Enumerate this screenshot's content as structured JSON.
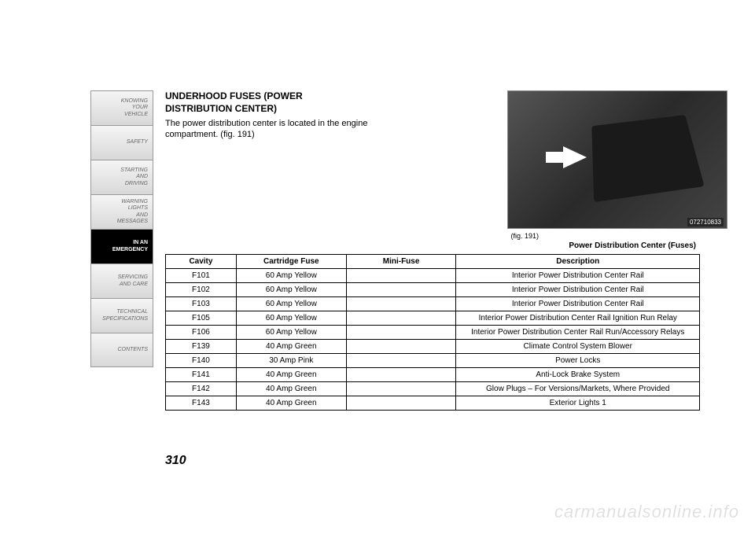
{
  "sidebar": {
    "items": [
      {
        "label": "KNOWING\nYOUR\nVEHICLE"
      },
      {
        "label": "SAFETY"
      },
      {
        "label": "STARTING\nAND\nDRIVING"
      },
      {
        "label": "WARNING\nLIGHTS\nAND\nMESSAGES"
      },
      {
        "label": "IN AN\nEMERGENCY"
      },
      {
        "label": "SERVICING\nAND CARE"
      },
      {
        "label": "TECHNICAL\nSPECIFICATIONS"
      },
      {
        "label": "CONTENTS"
      }
    ],
    "active_index": 4
  },
  "heading_line1": "UNDERHOOD FUSES (POWER",
  "heading_line2": "DISTRIBUTION CENTER)",
  "body_text": "The power distribution center is located in the engine compartment.  (fig. 191)",
  "figure": {
    "tag": "072710833",
    "caption": "(fig. 191)",
    "title": "Power Distribution Center (Fuses)"
  },
  "table": {
    "columns": [
      "Cavity",
      "Cartridge Fuse",
      "Mini-Fuse",
      "Description"
    ],
    "rows": [
      [
        "F101",
        "60 Amp Yellow",
        "",
        "Interior Power Distribution Center Rail"
      ],
      [
        "F102",
        "60 Amp Yellow",
        "",
        "Interior Power Distribution Center Rail"
      ],
      [
        "F103",
        "60 Amp Yellow",
        "",
        "Interior Power Distribution Center Rail"
      ],
      [
        "F105",
        "60 Amp Yellow",
        "",
        "Interior Power Distribution Center Rail Ignition Run Relay"
      ],
      [
        "F106",
        "60 Amp Yellow",
        "",
        "Interior Power Distribution Center Rail Run/Accessory Relays"
      ],
      [
        "F139",
        "40 Amp Green",
        "",
        "Climate Control System Blower"
      ],
      [
        "F140",
        "30 Amp Pink",
        "",
        "Power Locks"
      ],
      [
        "F141",
        "40 Amp Green",
        "",
        "Anti-Lock Brake System"
      ],
      [
        "F142",
        "40 Amp Green",
        "",
        "Glow Plugs – For Versions/Markets, Where Provided"
      ],
      [
        "F143",
        "40 Amp Green",
        "",
        "Exterior Lights 1"
      ]
    ]
  },
  "page_number": "310",
  "watermark": "carmanualsonline.info"
}
